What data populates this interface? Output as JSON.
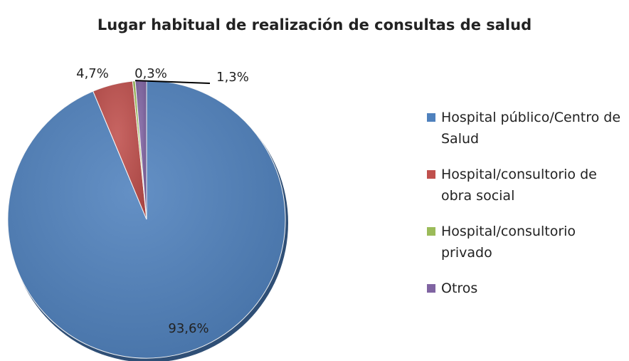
{
  "chart_data": {
    "type": "pie",
    "title": "Lugar habitual de realización de consultas de salud",
    "categories": [
      "Hospital público/Centro de Salud",
      "Hospital/consultorio de obra social",
      "Hospital/consultorio privado",
      "Otros"
    ],
    "values": [
      93.6,
      4.7,
      0.3,
      1.3
    ],
    "value_labels": [
      "93,6%",
      "4,7%",
      "0,3%",
      "1,3%"
    ],
    "colors": [
      "#4f81bd",
      "#c0504d",
      "#9bbb59",
      "#8064a2"
    ],
    "legend": "right"
  }
}
